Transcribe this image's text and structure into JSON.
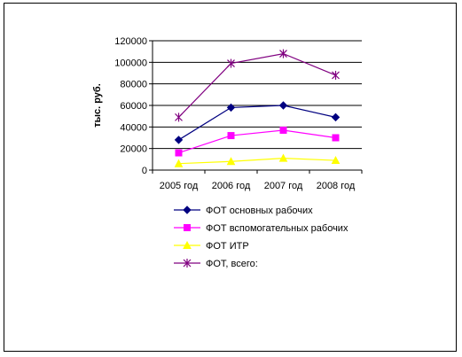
{
  "chart_data": {
    "type": "line",
    "title": "",
    "xlabel": "",
    "ylabel": "тыс. руб.",
    "ylim": [
      0,
      120000
    ],
    "yticks": [
      0,
      20000,
      40000,
      60000,
      80000,
      100000,
      120000
    ],
    "categories": [
      "2005 год",
      "2006 год",
      "2007 год",
      "2008 год"
    ],
    "grid": "horizontal",
    "legend_position": "bottom",
    "series": [
      {
        "name": "ФОТ основных рабочих",
        "values": [
          28000,
          58000,
          60000,
          49000
        ],
        "color": "#000080",
        "marker": "diamond"
      },
      {
        "name": "ФОТ вспомогательных рабочих",
        "values": [
          16000,
          32000,
          37000,
          30000
        ],
        "color": "#ff00ff",
        "marker": "square"
      },
      {
        "name": "ФОТ ИТР",
        "values": [
          6000,
          8000,
          11000,
          9000
        ],
        "color": "#ffff00",
        "marker": "triangle"
      },
      {
        "name": "ФОТ, всего:",
        "values": [
          49000,
          99000,
          108000,
          88000
        ],
        "color": "#800080",
        "marker": "star"
      }
    ]
  }
}
